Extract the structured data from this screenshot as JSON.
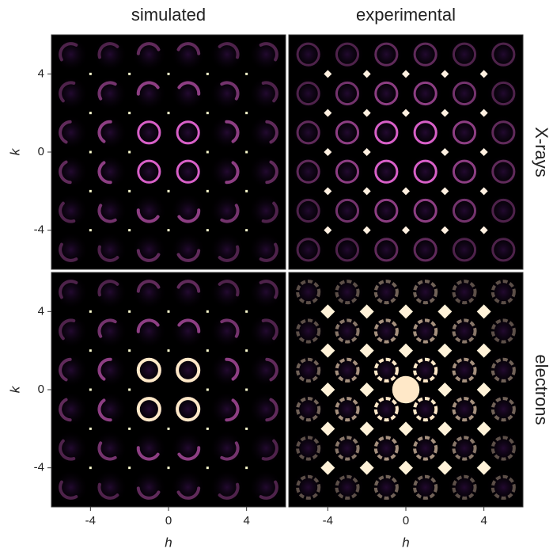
{
  "chart_data": [
    {
      "type": "image",
      "title": "simulated",
      "ylabel": "k",
      "xlim": [
        -6,
        6
      ],
      "ylim": [
        -6,
        6
      ],
      "yticks": [
        -4,
        0,
        4
      ]
    },
    {
      "type": "image",
      "title": "experimental",
      "row_label": "X-rays",
      "xlim": [
        -6,
        6
      ],
      "ylim": [
        -6,
        6
      ]
    },
    {
      "type": "image",
      "xlabel": "h",
      "ylabel": "k",
      "xlim": [
        -6,
        6
      ],
      "ylim": [
        -6,
        6
      ],
      "xticks": [
        -4,
        0,
        4
      ],
      "yticks": [
        -4,
        0,
        4
      ]
    },
    {
      "type": "image",
      "xlabel": "h",
      "row_label": "electrons",
      "xlim": [
        -6,
        6
      ],
      "ylim": [
        -6,
        6
      ],
      "xticks": [
        -4,
        0,
        4
      ]
    }
  ]
}
